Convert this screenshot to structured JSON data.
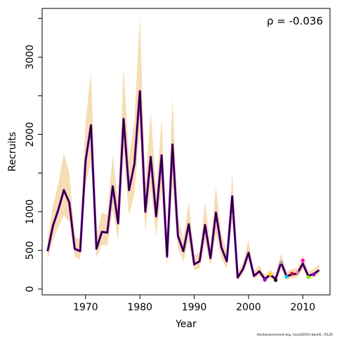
{
  "chart_data": {
    "type": "line",
    "title": "",
    "xlabel": "Year",
    "ylabel": "Recruits",
    "xlim": [
      1962,
      2015
    ],
    "ylim": [
      -75,
      3630
    ],
    "x_ticks": [
      1970,
      1980,
      1990,
      2000,
      2010
    ],
    "x_tick_labels": [
      "1970",
      "1980",
      "1990",
      "2000",
      "2010"
    ],
    "y_ticks": [
      0,
      500,
      1000,
      2000,
      3000
    ],
    "y_tick_labels": [
      "0",
      "500",
      "1000",
      "2000",
      "3000"
    ],
    "y_minor_ticks": [
      1500,
      2500,
      3500
    ],
    "annotation": "ρ = -0.036",
    "footnote": "stockassessment.org, nscod2015-base6, r5120",
    "grid": false,
    "x": [
      1963,
      1964,
      1965,
      1966,
      1967,
      1968,
      1969,
      1970,
      1971,
      1972,
      1973,
      1974,
      1975,
      1976,
      1977,
      1978,
      1979,
      1980,
      1981,
      1982,
      1983,
      1984,
      1985,
      1986,
      1987,
      1988,
      1989,
      1990,
      1991,
      1992,
      1993,
      1994,
      1995,
      1996,
      1997,
      1998,
      1999,
      2000,
      2001,
      2002,
      2003,
      2004,
      2005,
      2006,
      2007,
      2008,
      2009,
      2010,
      2011,
      2012,
      2013
    ],
    "series": [
      {
        "values": [
          490,
          820,
          1030,
          1280,
          1120,
          520,
          490,
          1660,
          2120,
          520,
          740,
          730,
          1330,
          850,
          2200,
          1280,
          1620,
          2560,
          1000,
          1710,
          940,
          1730,
          420,
          1870,
          690,
          490,
          840,
          320,
          360,
          830,
          400,
          990,
          540,
          360,
          1200,
          150,
          260,
          470,
          170,
          230,
          130,
          185,
          130,
          345,
          165,
          190,
          200,
          330,
          170,
          195,
          245
        ],
        "lower": [
          380,
          630,
          800,
          950,
          870,
          420,
          380,
          1340,
          1660,
          400,
          570,
          560,
          1030,
          630,
          1760,
          950,
          1250,
          2050,
          740,
          1310,
          690,
          1270,
          310,
          1350,
          530,
          360,
          620,
          240,
          270,
          610,
          290,
          720,
          400,
          260,
          880,
          110,
          200,
          370,
          130,
          175,
          95,
          140,
          95,
          260,
          120,
          140,
          150,
          260,
          125,
          150,
          190
        ],
        "upper": [
          640,
          1080,
          1370,
          1760,
          1500,
          680,
          640,
          2150,
          2820,
          690,
          990,
          960,
          1740,
          1140,
          2870,
          1700,
          2180,
          3530,
          1340,
          2300,
          1280,
          2210,
          560,
          2470,
          930,
          650,
          1140,
          430,
          480,
          1120,
          540,
          1330,
          720,
          480,
          1490,
          210,
          350,
          630,
          230,
          310,
          180,
          250,
          175,
          460,
          225,
          260,
          270,
          440,
          230,
          260,
          325
        ]
      }
    ],
    "retro_points": [
      {
        "x": 2003,
        "y": 120,
        "color": "#8a00c8"
      },
      {
        "x": 2004,
        "y": 190,
        "color": "#ffd700"
      },
      {
        "x": 2005,
        "y": 115,
        "color": "#000000"
      },
      {
        "x": 2006,
        "y": 345,
        "color": "#a0a0a0"
      },
      {
        "x": 2007,
        "y": 160,
        "color": "#00cfe0"
      },
      {
        "x": 2008,
        "y": 200,
        "color": "#e8001c"
      },
      {
        "x": 2009,
        "y": 215,
        "color": "#ff7bac"
      },
      {
        "x": 2010,
        "y": 370,
        "color": "#ff00c8"
      },
      {
        "x": 2011,
        "y": 155,
        "color": "#76ee00"
      },
      {
        "x": 2012,
        "y": 190,
        "color": "#8a00c8"
      }
    ],
    "colors": {
      "band": "#f5deb3",
      "line": "#000000",
      "retro_line": "#8a00c8"
    }
  }
}
